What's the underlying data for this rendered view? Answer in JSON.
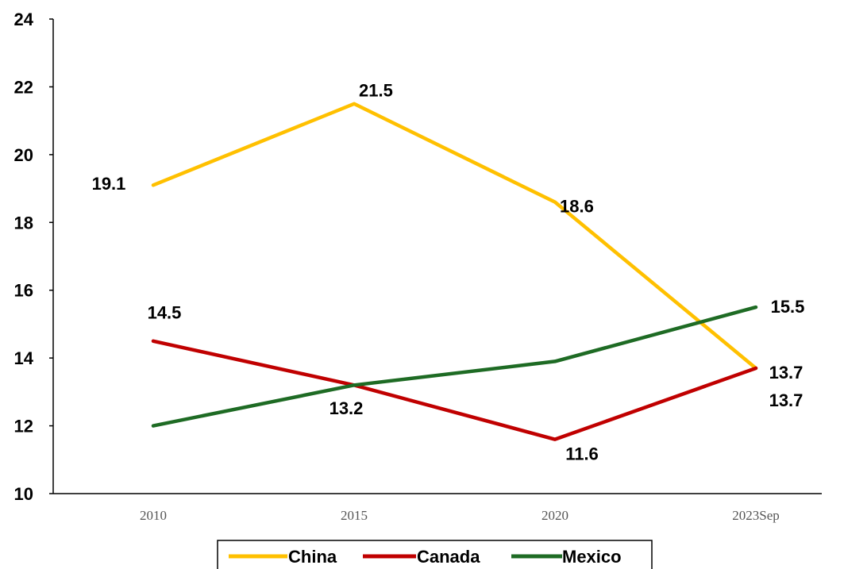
{
  "chart_data": {
    "type": "line",
    "title": "",
    "xlabel": "",
    "ylabel": "",
    "categories": [
      "2010",
      "2015",
      "2020",
      "2023Sep"
    ],
    "ylim": [
      10,
      24
    ],
    "yticks": [
      10,
      12,
      14,
      16,
      18,
      20,
      22,
      24
    ],
    "grid": false,
    "legend": "bottom",
    "series": [
      {
        "name": "China",
        "color": "#FFC000",
        "values": [
          19.1,
          21.5,
          18.6,
          13.7
        ],
        "labels": [
          "19.1",
          "21.5",
          "18.6",
          "13.7"
        ]
      },
      {
        "name": "Canada",
        "color": "#C00000",
        "values": [
          14.5,
          13.2,
          11.6,
          13.7
        ],
        "labels": [
          "14.5",
          "13.2",
          "11.6",
          "13.7"
        ]
      },
      {
        "name": "Mexico",
        "color": "#1E6B24",
        "values": [
          12.0,
          13.2,
          13.9,
          15.5
        ],
        "labels": [
          "",
          "",
          "",
          "15.5"
        ]
      }
    ]
  }
}
